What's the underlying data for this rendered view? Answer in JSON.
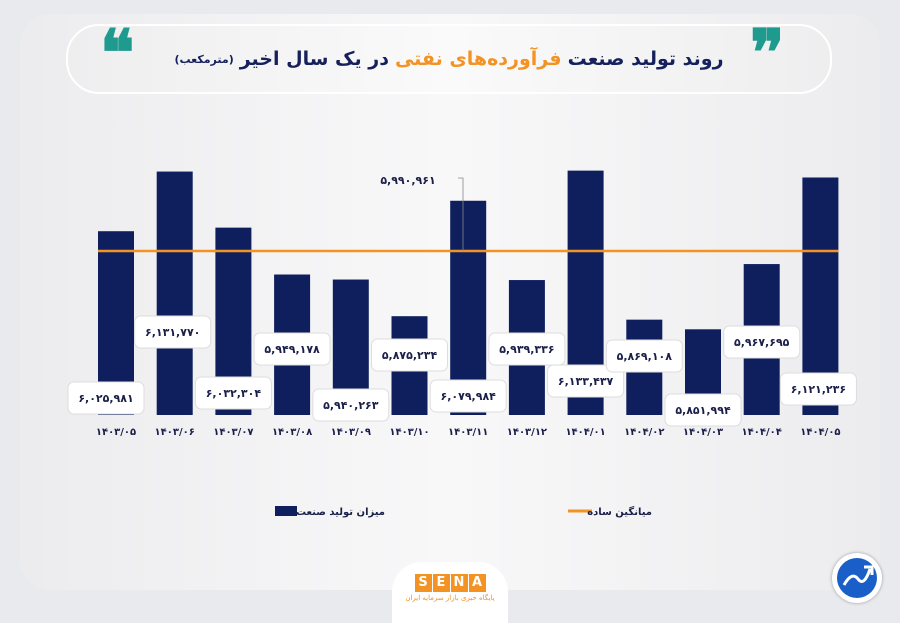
{
  "header": {
    "title_part1": "روند تولید صنعت",
    "title_highlight": "فرآورده‌های نفتی",
    "title_part2": "در یک سال اخیر",
    "title_unit": "(مترمکعب)"
  },
  "chart_data": {
    "type": "bar",
    "title": "روند تولید صنعت فرآورده‌های نفتی در یک سال اخیر (مترمکعب)",
    "categories": [
      "۱۴۰۳/۰۵",
      "۱۴۰۳/۰۶",
      "۱۴۰۳/۰۷",
      "۱۴۰۳/۰۸",
      "۱۴۰۳/۰۹",
      "۱۴۰۳/۱۰",
      "۱۴۰۳/۱۱",
      "۱۴۰۳/۱۲",
      "۱۴۰۴/۰۱",
      "۱۴۰۴/۰۲",
      "۱۴۰۴/۰۳",
      "۱۴۰۴/۰۴",
      "۱۴۰۴/۰۵"
    ],
    "series": [
      {
        "name": "میزان تولید صنعت",
        "type": "bar",
        "color": "#0f1f5e",
        "values": [
          6025981,
          6131770,
          6032304,
          5949178,
          5940263,
          5875234,
          6079984,
          5939336,
          6133437,
          5869108,
          5851994,
          5967695,
          6121236
        ],
        "labels": [
          "۶,۰۲۵,۹۸۱",
          "۶,۱۳۱,۷۷۰",
          "۶,۰۳۲,۳۰۴",
          "۵,۹۴۹,۱۷۸",
          "۵,۹۴۰,۲۶۳",
          "۵,۸۷۵,۲۳۴",
          "۶,۰۷۹,۹۸۴",
          "۵,۹۳۹,۳۳۶",
          "۶,۱۳۳,۴۳۷",
          "۵,۸۶۹,۱۰۸",
          "۵,۸۵۱,۹۹۴",
          "۵,۹۶۷,۶۹۵",
          "۶,۱۲۱,۲۳۶"
        ]
      },
      {
        "name": "میانگین ساده",
        "type": "line",
        "color": "#f39323",
        "value": 5990961,
        "label": "۵,۹۹۰,۹۶۱"
      }
    ],
    "ylim": [
      5700000,
      6170000
    ],
    "grid": false,
    "legend": "bottom"
  },
  "footer": {
    "logo_letters": [
      "S",
      "E",
      "N",
      "A"
    ],
    "logo_subtitle": "پایگاه خبری بازار سرمایه ایران"
  }
}
